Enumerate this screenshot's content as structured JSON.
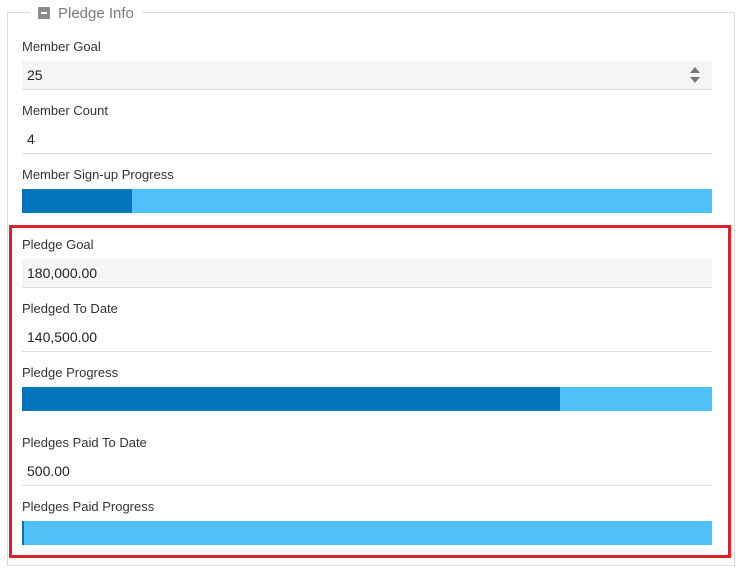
{
  "section": {
    "title": "Pledge Info",
    "collapse_icon": "minus-square-icon"
  },
  "member_goal": {
    "label": "Member Goal",
    "value": "25"
  },
  "member_count": {
    "label": "Member Count",
    "value": "4"
  },
  "member_progress": {
    "label": "Member Sign-up Progress",
    "fraction": 0.16
  },
  "pledge_goal": {
    "label": "Pledge Goal",
    "value": "180,000.00"
  },
  "pledged_to_date": {
    "label": "Pledged To Date",
    "value": "140,500.00"
  },
  "pledge_progress": {
    "label": "Pledge Progress",
    "fraction": 0.78
  },
  "pledges_paid": {
    "label": "Pledges Paid To Date",
    "value": "500.00"
  },
  "pledges_paid_progress": {
    "label": "Pledges Paid Progress",
    "fraction": 0.003
  },
  "colors": {
    "progress_track": "#4fc1f6",
    "progress_fill": "#0473bd",
    "highlight": "#d9232a"
  }
}
